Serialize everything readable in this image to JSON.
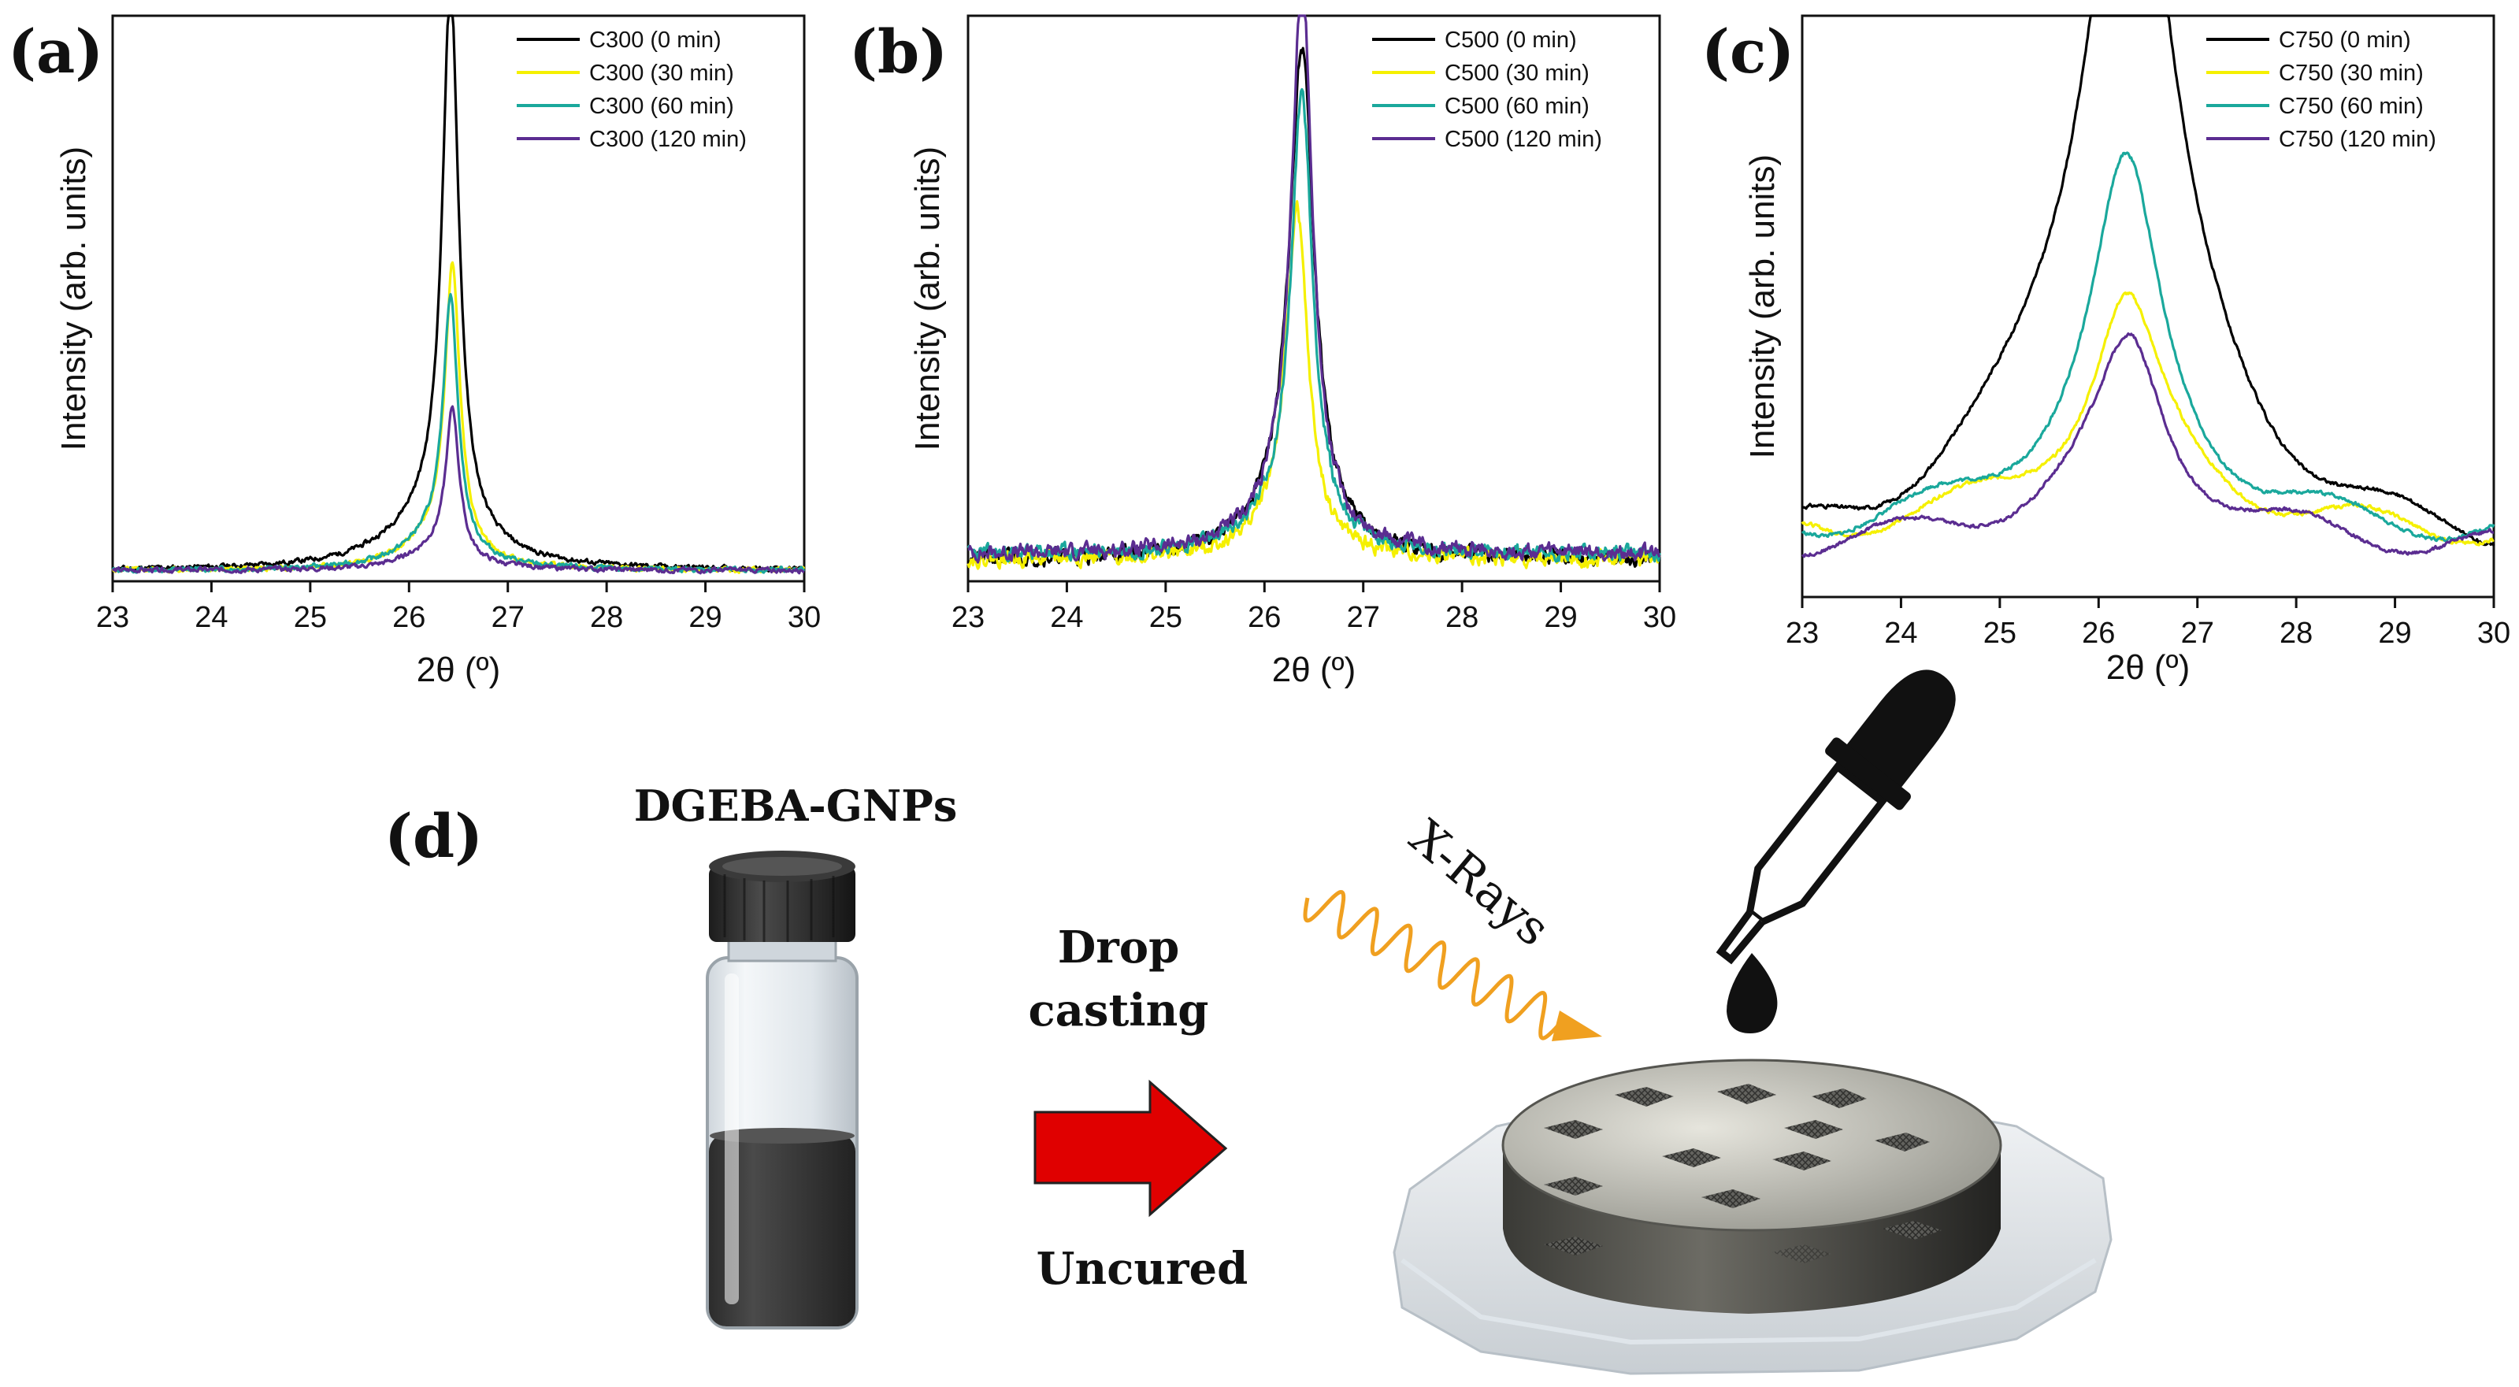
{
  "chart_data": [
    {
      "type": "line",
      "panel": "(a)",
      "xlabel": "2θ (º)",
      "ylabel": "Intensity (arb. units)",
      "xlim": [
        23,
        30
      ],
      "ylim": [
        0,
        1.05
      ],
      "xticks": [
        "23",
        "24",
        "25",
        "26",
        "27",
        "28",
        "29",
        "30"
      ],
      "legend_position": "top-right",
      "series": [
        {
          "name": "C300 (0 min)",
          "color": "#000000",
          "peak": 26.42,
          "peak_height": 1.0,
          "width_narrow": 0.1,
          "width_broad": 0.55,
          "broad_height": 0.1,
          "baseline": 0.02,
          "noise": 0.008,
          "seed": 11
        },
        {
          "name": "C300 (30 min)",
          "color": "#f5f000",
          "peak": 26.44,
          "peak_height": 0.52,
          "width_narrow": 0.09,
          "width_broad": 0.4,
          "broad_height": 0.06,
          "baseline": 0.02,
          "noise": 0.008,
          "seed": 12
        },
        {
          "name": "C300 (60 min)",
          "color": "#1aa89c",
          "peak": 26.42,
          "peak_height": 0.46,
          "width_narrow": 0.09,
          "width_broad": 0.4,
          "broad_height": 0.06,
          "baseline": 0.02,
          "noise": 0.008,
          "seed": 13
        },
        {
          "name": "C300 (120 min)",
          "color": "#5b2d91",
          "peak": 26.44,
          "peak_height": 0.27,
          "width_narrow": 0.08,
          "width_broad": 0.35,
          "broad_height": 0.04,
          "baseline": 0.02,
          "noise": 0.008,
          "seed": 14
        }
      ]
    },
    {
      "type": "line",
      "panel": "(b)",
      "xlabel": "2θ (º)",
      "ylabel": "Intensity (arb. units)",
      "xlim": [
        23,
        30
      ],
      "ylim": [
        0,
        1.05
      ],
      "xticks": [
        "23",
        "24",
        "25",
        "26",
        "27",
        "28",
        "29",
        "30"
      ],
      "legend_position": "top-right",
      "series": [
        {
          "name": "C500 (0 min)",
          "color": "#000000",
          "peak": 26.38,
          "peak_height": 0.88,
          "width_narrow": 0.15,
          "width_broad": 0.45,
          "broad_height": 0.08,
          "baseline": 0.04,
          "noise": 0.025,
          "seed": 21
        },
        {
          "name": "C500 (30 min)",
          "color": "#f5f000",
          "peak": 26.33,
          "peak_height": 0.6,
          "width_narrow": 0.13,
          "width_broad": 0.4,
          "broad_height": 0.06,
          "baseline": 0.04,
          "noise": 0.025,
          "seed": 22
        },
        {
          "name": "C500 (60 min)",
          "color": "#1aa89c",
          "peak": 26.38,
          "peak_height": 0.8,
          "width_narrow": 0.13,
          "width_broad": 0.4,
          "broad_height": 0.07,
          "baseline": 0.05,
          "noise": 0.025,
          "seed": 23
        },
        {
          "name": "C500 (120 min)",
          "color": "#5b2d91",
          "peak": 26.38,
          "peak_height": 1.0,
          "width_narrow": 0.13,
          "width_broad": 0.4,
          "broad_height": 0.08,
          "baseline": 0.05,
          "noise": 0.025,
          "seed": 24
        }
      ]
    },
    {
      "type": "line",
      "panel": "(c)",
      "xlabel": "2θ (º)",
      "ylabel": "Intensity (arb. units)",
      "xlim": [
        23,
        30
      ],
      "ylim": [
        0,
        1.05
      ],
      "xticks": [
        "23",
        "24",
        "25",
        "26",
        "27",
        "28",
        "29",
        "30"
      ],
      "legend_position": "top-right",
      "series": [
        {
          "name": "C750 (0 min)",
          "color": "#000000",
          "peak": 26.32,
          "peak_height": 1.0,
          "width_narrow": 0.45,
          "width_broad": 1.2,
          "broad_height": 0.48,
          "baseline": 0.06,
          "noise": 0.006,
          "seed": 31
        },
        {
          "name": "C750 (30 min)",
          "color": "#f5f000",
          "peak": 26.28,
          "peak_height": 0.32,
          "width_narrow": 0.4,
          "width_broad": 1.5,
          "broad_height": 0.12,
          "baseline": 0.1,
          "noise": 0.006,
          "seed": 32
        },
        {
          "name": "C750 (60 min)",
          "color": "#1aa89c",
          "peak": 26.28,
          "peak_height": 0.52,
          "width_narrow": 0.4,
          "width_broad": 1.3,
          "broad_height": 0.16,
          "baseline": 0.1,
          "noise": 0.006,
          "seed": 33
        },
        {
          "name": "C750 (120 min)",
          "color": "#5b2d91",
          "peak": 26.32,
          "peak_height": 0.28,
          "width_narrow": 0.4,
          "width_broad": 1.4,
          "broad_height": 0.1,
          "baseline": 0.08,
          "noise": 0.006,
          "seed": 34
        }
      ]
    }
  ],
  "schematic": {
    "panel_label": "(d)",
    "vial_label": "DGEBA-GNPs",
    "arrow_top_line1": "Drop",
    "arrow_top_line2": "casting",
    "arrow_bottom": "Uncured",
    "xray_label": "X-Rays",
    "colors": {
      "arrow": "#e00000",
      "xray": "#f0a020",
      "liquid": "#3a3a3a",
      "cap": "#2a2a2a"
    }
  }
}
